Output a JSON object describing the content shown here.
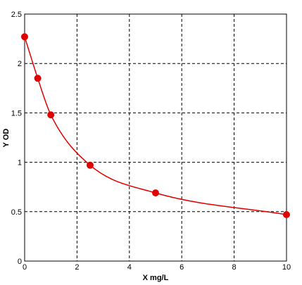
{
  "chart_data": {
    "type": "scatter",
    "title": "",
    "xlabel": "X mg/L",
    "ylabel": "Y OD",
    "xlim": [
      0,
      10
    ],
    "ylim": [
      0,
      2.5
    ],
    "x_ticks": [
      0,
      2,
      4,
      6,
      8,
      10
    ],
    "y_ticks": [
      0,
      0.5,
      1,
      1.5,
      2,
      2.5
    ],
    "x_tick_labels": [
      "0",
      "2",
      "4",
      "6",
      "8",
      "10"
    ],
    "y_tick_labels": [
      "0",
      "0.5",
      "1",
      "1.5",
      "2",
      "2.5"
    ],
    "grid": true,
    "legend": "none",
    "series": [
      {
        "x": [
          0,
          0.5,
          1,
          2.5,
          5,
          10
        ],
        "y": [
          2.27,
          1.85,
          1.48,
          0.97,
          0.69,
          0.47
        ],
        "color": "#e00000",
        "marker": "circle",
        "fit_curve": true
      }
    ]
  }
}
